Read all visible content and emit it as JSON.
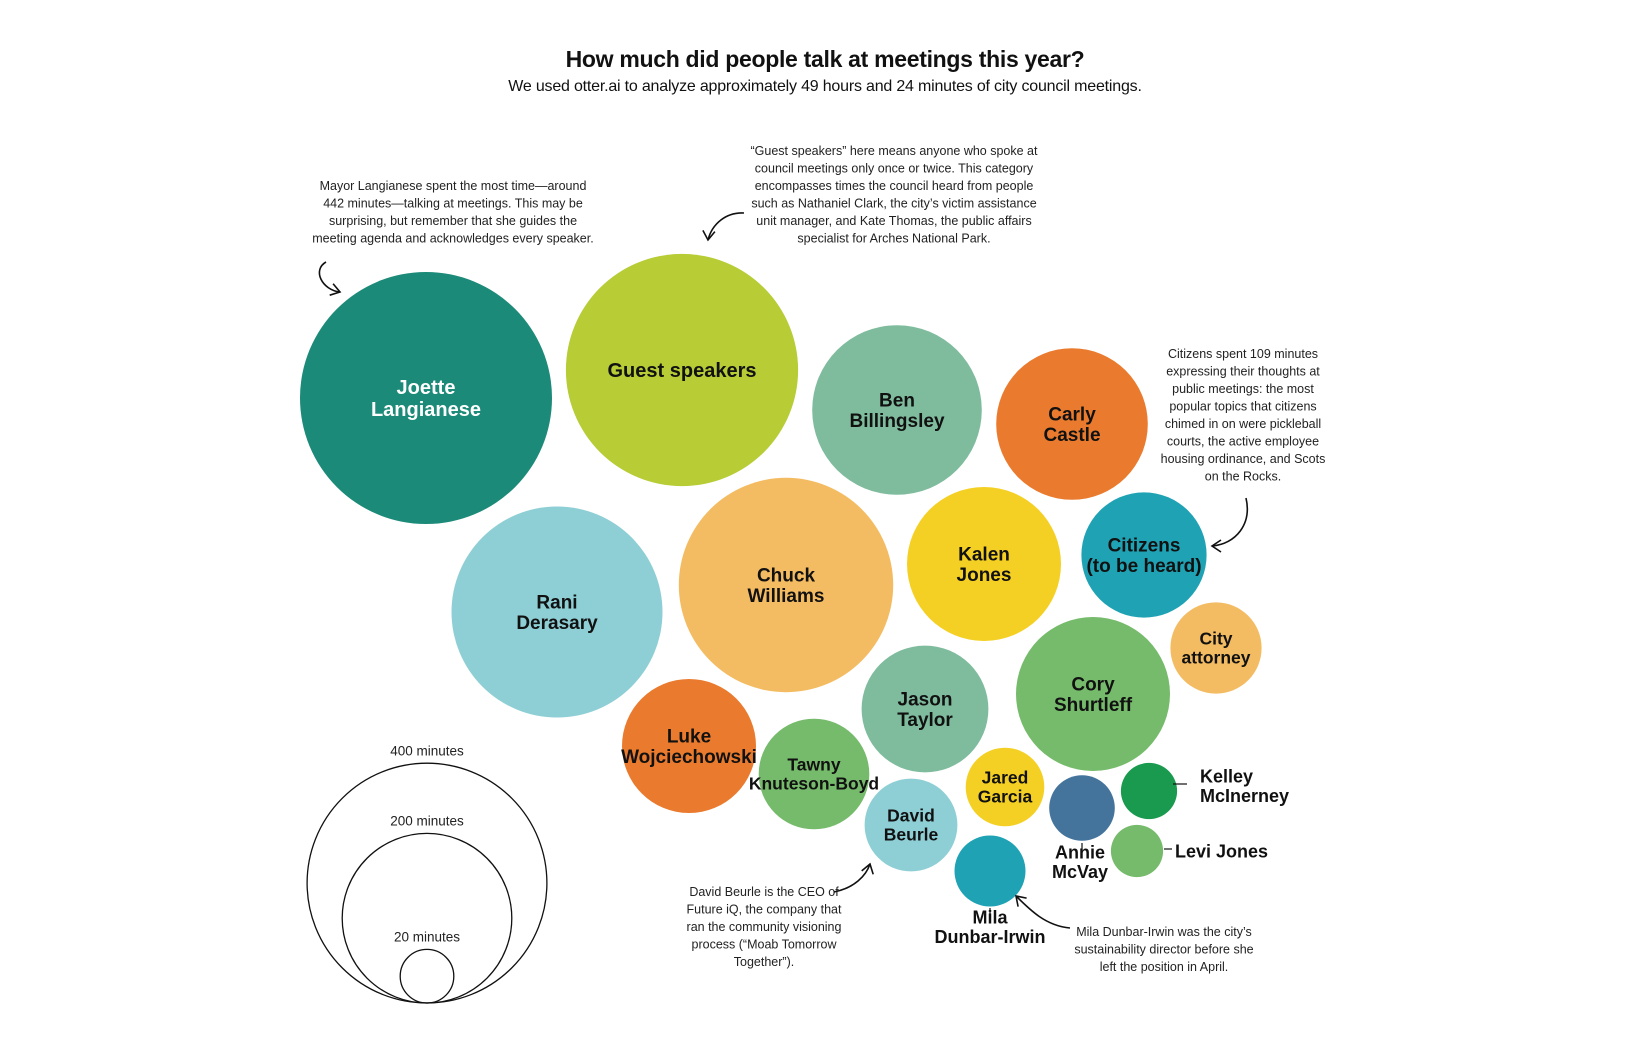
{
  "chart_data": {
    "type": "bubble",
    "title": "How much did people talk at meetings this year?",
    "subtitle": "We used otter.ai to analyze approximately 49 hours and 24 minutes of city council meetings.",
    "unit": "minutes",
    "series": [
      {
        "name": "Joette Langianese",
        "label": [
          "Joette",
          "Langianese"
        ],
        "value": 442,
        "color": "#1c8a78",
        "text_color": "#ffffff"
      },
      {
        "name": "Guest speakers",
        "label": [
          "Guest speakers"
        ],
        "value": 375,
        "color": "#b7cc35",
        "text_color": "#111111"
      },
      {
        "name": "Ben Billingsley",
        "label": [
          "Ben",
          "Billingsley"
        ],
        "value": 200,
        "color": "#7fbc9d",
        "text_color": "#111111"
      },
      {
        "name": "Carly Castle",
        "label": [
          "Carly",
          "Castle"
        ],
        "value": 160,
        "color": "#ea7b2e",
        "text_color": "#111111"
      },
      {
        "name": "Rani Derasary",
        "label": [
          "Rani",
          "Derasary"
        ],
        "value": 310,
        "color": "#8ecfd5",
        "text_color": "#111111"
      },
      {
        "name": "Chuck Williams",
        "label": [
          "Chuck",
          "Williams"
        ],
        "value": 320,
        "color": "#f4bc62",
        "text_color": "#111111"
      },
      {
        "name": "Kalen Jones",
        "label": [
          "Kalen",
          "Jones"
        ],
        "value": 165,
        "color": "#f5d024",
        "text_color": "#111111"
      },
      {
        "name": "Citizens (to be heard)",
        "label": [
          "Citizens",
          "(to be heard)"
        ],
        "value": 109,
        "color": "#1fa2b4",
        "text_color": "#111111"
      },
      {
        "name": "City attorney",
        "label": [
          "City",
          "attorney"
        ],
        "value": 58,
        "color": "#f4bc62",
        "text_color": "#111111"
      },
      {
        "name": "Cory Shurtleff",
        "label": [
          "Cory",
          "Shurtleff"
        ],
        "value": 165,
        "color": "#76bb6b",
        "text_color": "#111111"
      },
      {
        "name": "Jason Taylor",
        "label": [
          "Jason",
          "Taylor"
        ],
        "value": 112,
        "color": "#7fbc9d",
        "text_color": "#111111"
      },
      {
        "name": "Luke Wojciechowski",
        "label": [
          "Luke",
          "Wojciechowski"
        ],
        "value": 125,
        "color": "#ea7b2e",
        "text_color": "#111111"
      },
      {
        "name": "Tawny Knuteson-Boyd",
        "label": [
          "Tawny",
          "Knuteson-Boyd"
        ],
        "value": 85,
        "color": "#76bb6b",
        "text_color": "#111111"
      },
      {
        "name": "David Beurle",
        "label": [
          "David",
          "Beurle"
        ],
        "value": 60,
        "color": "#8ecfd5",
        "text_color": "#111111"
      },
      {
        "name": "Jared Garcia",
        "label": [
          "Jared",
          "Garcia"
        ],
        "value": 43,
        "color": "#f5d024",
        "text_color": "#111111"
      },
      {
        "name": "Annie McVay",
        "label": [
          "Annie",
          "McVay"
        ],
        "value": 30,
        "color": "#44739c",
        "text_color": "#111111"
      },
      {
        "name": "Kelley McInerney",
        "label": [
          "Kelley",
          "McInerney"
        ],
        "value": 22,
        "color": "#1a9a4f",
        "text_color": "#111111"
      },
      {
        "name": "Levi Jones",
        "label": [
          "Levi Jones"
        ],
        "value": 19,
        "color": "#76bb6b",
        "text_color": "#111111"
      },
      {
        "name": "Mila Dunbar-Irwin",
        "label": [
          "Mila",
          "Dunbar-Irwin"
        ],
        "value": 35,
        "color": "#1fa2b4",
        "text_color": "#111111"
      }
    ],
    "size_legend": [
      {
        "label": "400 minutes",
        "value": 400
      },
      {
        "label": "200 minutes",
        "value": 200
      },
      {
        "label": "20 minutes",
        "value": 20
      }
    ],
    "annotations": [
      {
        "target": "Joette Langianese",
        "lines": [
          "Mayor Langianese spent the most time—around",
          "442 minutes—talking at meetings. This may be",
          "surprising, but remember that she guides the",
          "meeting agenda and acknowledges every speaker."
        ]
      },
      {
        "target": "Guest speakers",
        "lines": [
          "“Guest speakers” here means anyone who spoke at",
          "council meetings only once or twice. This category",
          "encompasses times the council heard from people",
          "such as Nathaniel Clark, the city’s victim assistance",
          "unit manager, and Kate Thomas, the public affairs",
          "specialist for Arches National Park."
        ]
      },
      {
        "target": "Citizens (to be heard)",
        "lines": [
          "Citizens spent 109 minutes",
          "expressing their thoughts at",
          "public meetings: the most",
          "popular topics that citizens",
          "chimed in on were pickleball",
          "courts, the active employee",
          "housing ordinance, and Scots",
          "on the Rocks."
        ]
      },
      {
        "target": "David Beurle",
        "lines": [
          "David Beurle is the CEO of",
          "Future iQ, the company that",
          "ran the community visioning",
          "process (“Moab Tomorrow",
          "Together”)."
        ]
      },
      {
        "target": "Mila Dunbar-Irwin",
        "lines": [
          "Mila Dunbar-Irwin was the city’s",
          "sustainability director before she",
          "left the position in April."
        ]
      }
    ]
  }
}
